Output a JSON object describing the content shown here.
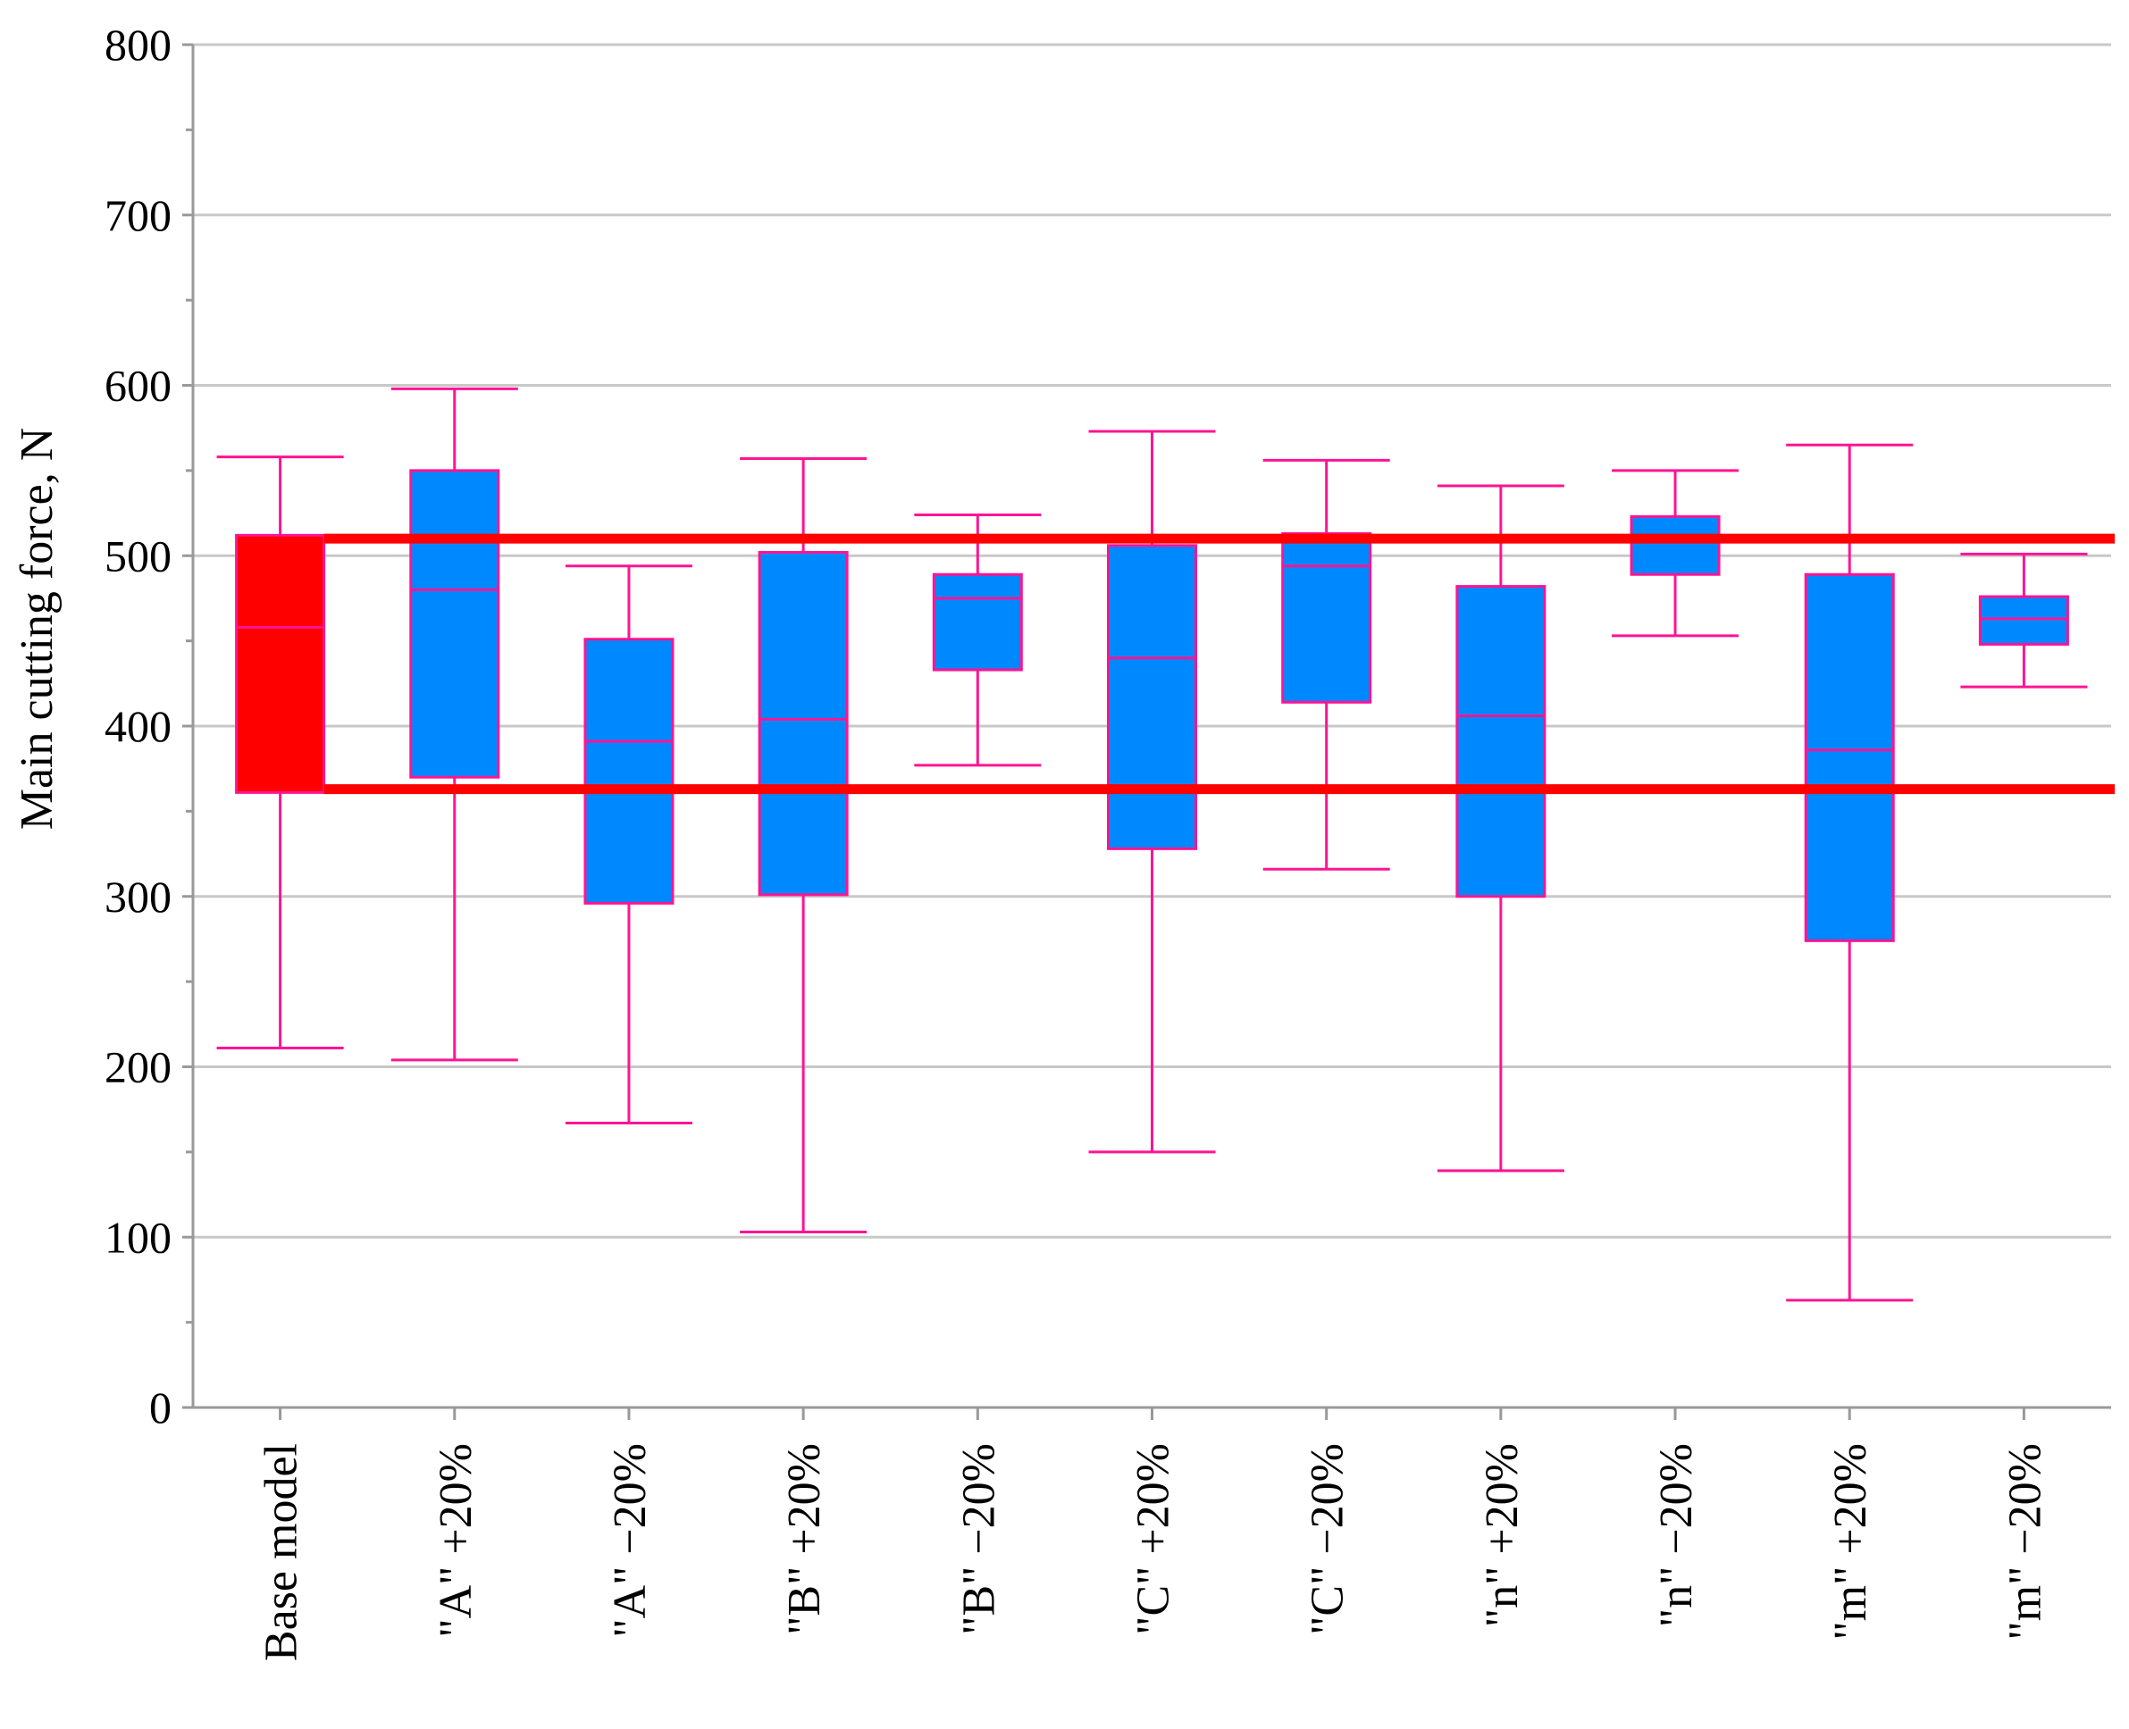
{
  "chart_data": {
    "type": "boxplot",
    "title": "",
    "xlabel": "",
    "ylabel": "Main cutting force, N",
    "ylim": [
      0,
      800
    ],
    "yticks": [
      0,
      100,
      200,
      300,
      400,
      500,
      600,
      700,
      800
    ],
    "grid": true,
    "reference_lines": [
      510,
      363
    ],
    "colors": {
      "base": "#ff0000",
      "variant": "#0088ff",
      "stroke": "#ff1493",
      "reference": "#ff0000",
      "grid": "#c8c8c8",
      "axis": "#999999"
    },
    "categories": [
      "Base model",
      "\"A\" +20%",
      "\"A\" −20%",
      "\"B\" +20%",
      "\"B\" −20%",
      "\"C\" +20%",
      "\"C\" −20%",
      "\"n\" +20%",
      "\"n\" −20%",
      "\"m\" +20%",
      "\"m\" −20%"
    ],
    "boxes": [
      {
        "min": 211,
        "q1": 361,
        "median": 458,
        "q3": 512,
        "max": 558,
        "highlight": true
      },
      {
        "min": 204,
        "q1": 370,
        "median": 480,
        "q3": 550,
        "max": 598,
        "highlight": false
      },
      {
        "min": 167,
        "q1": 296,
        "median": 391,
        "q3": 451,
        "max": 494,
        "highlight": false
      },
      {
        "min": 103,
        "q1": 301,
        "median": 404,
        "q3": 502,
        "max": 557,
        "highlight": false
      },
      {
        "min": 377,
        "q1": 433,
        "median": 475,
        "q3": 489,
        "max": 524,
        "highlight": false
      },
      {
        "min": 150,
        "q1": 328,
        "median": 440,
        "q3": 506,
        "max": 573,
        "highlight": false
      },
      {
        "min": 316,
        "q1": 414,
        "median": 494,
        "q3": 513,
        "max": 556,
        "highlight": false
      },
      {
        "min": 139,
        "q1": 300,
        "median": 406,
        "q3": 482,
        "max": 541,
        "highlight": false
      },
      {
        "min": 453,
        "q1": 489,
        "median": 509,
        "q3": 523,
        "max": 550,
        "highlight": false
      },
      {
        "min": 63,
        "q1": 274,
        "median": 386,
        "q3": 489,
        "max": 565,
        "highlight": false
      },
      {
        "min": 423,
        "q1": 448,
        "median": 463,
        "q3": 476,
        "max": 501,
        "highlight": false
      }
    ]
  }
}
